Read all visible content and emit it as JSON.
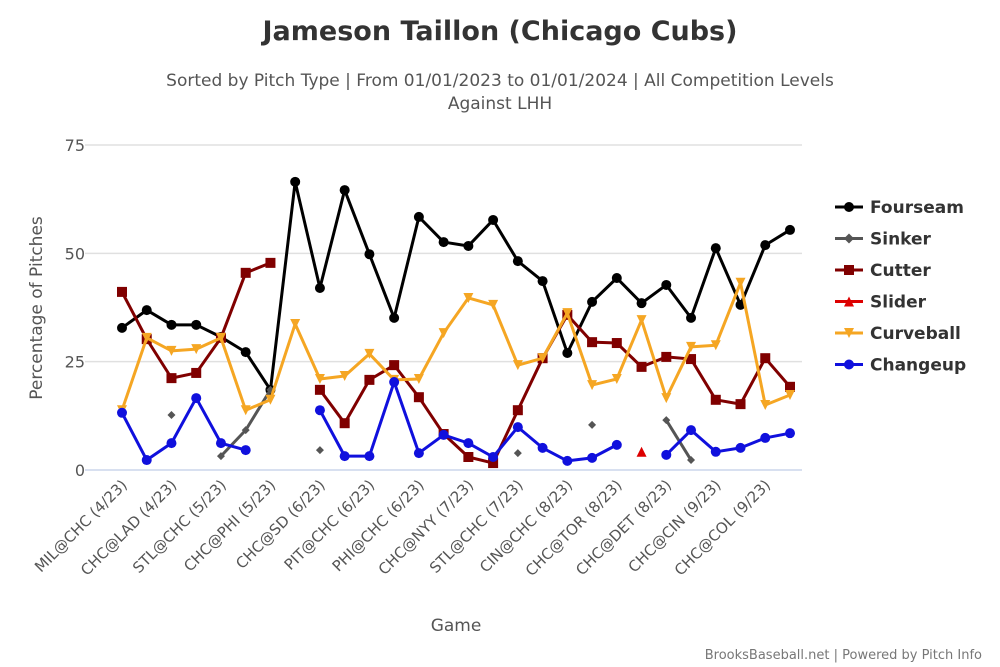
{
  "chart_data": {
    "type": "line",
    "title": "Jameson Taillon (Chicago Cubs)",
    "subtitle": [
      "Sorted by Pitch Type | From 01/01/2023 to 01/01/2024 | All Competition Levels",
      "Against LHH"
    ],
    "xlabel": "Game",
    "ylabel": "Percentage of Pitches",
    "ylim": [
      0,
      75
    ],
    "yticks": [
      0,
      25,
      50,
      75
    ],
    "grid": true,
    "legend_placement": "right",
    "credit": "BrooksBaseball.net | Powered by Pitch Info",
    "categories": [
      "MIL@CHC (4/23)",
      "",
      "CHC@LAD (4/23)",
      "",
      "STL@CHC (5/23)",
      "",
      "CHC@PHI (5/23)",
      "",
      "CHC@SD (6/23)",
      "",
      "PIT@CHC (6/23)",
      "",
      "PHI@CHC (6/23)",
      "",
      "CHC@NYY (7/23)",
      "",
      "STL@CHC (7/23)",
      "",
      "CIN@CHC (8/23)",
      "",
      "CHC@TOR (8/23)",
      "",
      "CHC@DET (8/23)",
      "",
      "CHC@CIN (9/23)",
      "",
      "CHC@COL (9/23)",
      ""
    ],
    "series": [
      {
        "name": "Fourseam",
        "color": "#000000",
        "marker": "circle",
        "values": [
          32.8,
          36.9,
          33.5,
          33.5,
          30.7,
          27.2,
          18.5,
          66.5,
          42.0,
          64.6,
          49.8,
          35.1,
          58.4,
          52.6,
          51.7,
          57.7,
          48.2,
          43.6,
          27.0,
          38.8,
          44.3,
          38.5,
          42.7,
          35.1,
          51.2,
          38.1,
          51.9,
          55.4
        ]
      },
      {
        "name": "Sinker",
        "color": "#555555",
        "marker": "diamond",
        "values": [
          null,
          null,
          12.7,
          null,
          3.2,
          9.2,
          18.5,
          null,
          4.6,
          null,
          null,
          null,
          null,
          null,
          null,
          null,
          3.9,
          null,
          null,
          10.4,
          null,
          null,
          11.5,
          2.3,
          null,
          null,
          null,
          null
        ]
      },
      {
        "name": "Cutter",
        "color": "#800000",
        "marker": "square",
        "values": [
          41.1,
          30.2,
          21.2,
          22.4,
          30.5,
          45.5,
          47.8,
          null,
          18.5,
          10.8,
          20.8,
          24.2,
          16.8,
          8.3,
          3.0,
          1.6,
          13.8,
          25.8,
          35.8,
          29.5,
          29.3,
          23.8,
          26.1,
          25.6,
          16.2,
          15.2,
          25.8,
          19.2
        ]
      },
      {
        "name": "Slider",
        "color": "#dd0000",
        "marker": "triangle",
        "values": [
          null,
          null,
          null,
          null,
          null,
          null,
          null,
          null,
          null,
          null,
          null,
          null,
          null,
          null,
          null,
          null,
          null,
          null,
          null,
          null,
          null,
          4.2,
          null,
          null,
          null,
          null,
          null,
          null
        ]
      },
      {
        "name": "Curveball",
        "color": "#f5a623",
        "marker": "triangle-down",
        "values": [
          13.8,
          30.5,
          27.5,
          27.9,
          30.5,
          13.8,
          16.2,
          33.7,
          21.0,
          21.7,
          26.8,
          20.8,
          21.0,
          31.6,
          39.7,
          38.1,
          24.2,
          25.8,
          36.2,
          19.6,
          21.0,
          34.6,
          16.6,
          28.4,
          28.8,
          43.2,
          15.0,
          17.3
        ]
      },
      {
        "name": "Changeup",
        "color": "#1010dd",
        "marker": "circle",
        "values": [
          13.2,
          2.3,
          6.2,
          16.6,
          6.2,
          4.6,
          null,
          null,
          13.8,
          3.2,
          3.2,
          20.3,
          3.9,
          8.1,
          6.2,
          3.0,
          9.9,
          5.1,
          2.1,
          2.8,
          5.8,
          null,
          3.5,
          9.2,
          4.2,
          5.1,
          7.4,
          8.5
        ]
      }
    ]
  }
}
